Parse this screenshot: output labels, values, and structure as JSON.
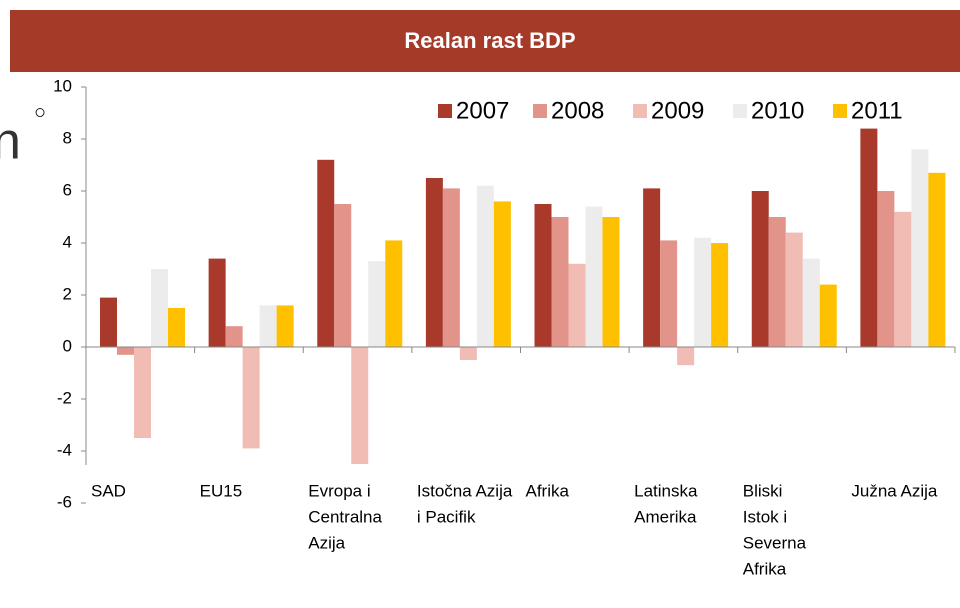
{
  "slide_fragments": [
    "○",
    "n"
  ],
  "chart_data": {
    "type": "bar",
    "title": "Realan rast BDP",
    "categories": [
      [
        "SAD"
      ],
      [
        "EU15"
      ],
      [
        "Evropa i",
        "Centralna",
        "Azija"
      ],
      [
        "Istočna Azija",
        "i Pacifik"
      ],
      [
        "Afrika"
      ],
      [
        "Latinska",
        "Amerika"
      ],
      [
        "Bliski",
        "Istok i",
        "Severna",
        "Afrika"
      ],
      [
        "Južna Azija"
      ]
    ],
    "series": [
      {
        "name": "2007",
        "color": "#a93a2b",
        "values": [
          1.9,
          3.4,
          7.2,
          6.5,
          5.5,
          6.1,
          6.0,
          8.4
        ]
      },
      {
        "name": "2008",
        "color": "#e3948a",
        "values": [
          -0.3,
          0.8,
          5.5,
          6.1,
          5.0,
          4.1,
          5.0,
          6.0
        ]
      },
      {
        "name": "2009",
        "color": "#f0bcb4",
        "values": [
          -3.5,
          -3.9,
          -4.5,
          -0.5,
          3.2,
          -0.7,
          4.4,
          5.2
        ]
      },
      {
        "name": "2010",
        "color": "#ececec",
        "values": [
          3.0,
          1.6,
          3.3,
          6.2,
          5.4,
          4.2,
          3.4,
          7.6
        ]
      },
      {
        "name": "2011",
        "color": "#ffc000",
        "values": [
          1.5,
          1.6,
          4.1,
          5.6,
          5.0,
          4.0,
          2.4,
          6.7
        ]
      }
    ],
    "ylim": [
      -6,
      10
    ],
    "yticks": [
      -6,
      -4,
      -2,
      0,
      2,
      4,
      6,
      8,
      10
    ],
    "legend": "top-right"
  }
}
